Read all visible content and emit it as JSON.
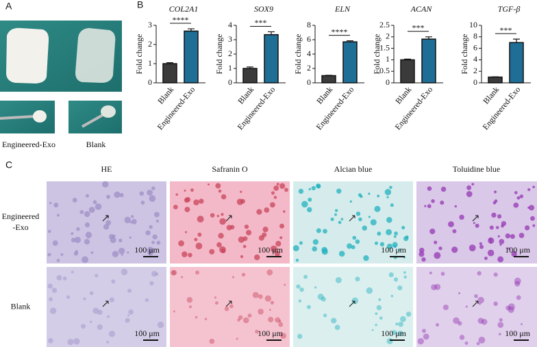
{
  "panels": [
    "A",
    "B",
    "C"
  ],
  "photo_labels": [
    "Engineered-Exo",
    "Blank"
  ],
  "chart_data": [
    {
      "type": "bar",
      "title": "COL2A1",
      "y_label": "Fold change",
      "categories": [
        "Blank",
        "Engineered-Exo"
      ],
      "values": [
        1.0,
        2.7
      ],
      "errors": [
        0.05,
        0.12
      ],
      "colors": [
        "#3b3b3b",
        "#1f6e96"
      ],
      "ylim": [
        0,
        3
      ],
      "yticks": [
        0,
        1,
        2,
        3
      ],
      "significance": "****"
    },
    {
      "type": "bar",
      "title": "SOX9",
      "y_label": "Fold change",
      "categories": [
        "Blank",
        "Engineered-Exo"
      ],
      "values": [
        1.0,
        3.35
      ],
      "errors": [
        0.1,
        0.2
      ],
      "colors": [
        "#3b3b3b",
        "#1f6e96"
      ],
      "ylim": [
        0,
        4
      ],
      "yticks": [
        0,
        1,
        2,
        3,
        4
      ],
      "significance": "***"
    },
    {
      "type": "bar",
      "title": "ELN",
      "y_label": "Fold change",
      "categories": [
        "Blank",
        "Engineered-Exo"
      ],
      "values": [
        1.0,
        5.7
      ],
      "errors": [
        0.05,
        0.15
      ],
      "colors": [
        "#3b3b3b",
        "#1f6e96"
      ],
      "ylim": [
        0,
        8
      ],
      "yticks": [
        0,
        2,
        4,
        6,
        8
      ],
      "significance": "****"
    },
    {
      "type": "bar",
      "title": "ACAN",
      "y_label": "Fold change",
      "categories": [
        "Blank",
        "Engineered-Exo"
      ],
      "values": [
        1.0,
        1.9
      ],
      "errors": [
        0.03,
        0.1
      ],
      "colors": [
        "#3b3b3b",
        "#1f6e96"
      ],
      "ylim": [
        0,
        2.5
      ],
      "yticks": [
        0,
        0.5,
        1,
        1.5,
        2,
        2.5
      ],
      "significance": "***"
    },
    {
      "type": "bar",
      "title": "TGF-β",
      "y_label": "Fold change",
      "categories": [
        "Blank",
        "Engineered-Exo"
      ],
      "values": [
        1.0,
        7.0
      ],
      "errors": [
        0.05,
        0.6
      ],
      "colors": [
        "#3b3b3b",
        "#1f6e96"
      ],
      "ylim": [
        0,
        10
      ],
      "yticks": [
        0,
        2,
        4,
        6,
        8,
        10
      ],
      "significance": "***"
    }
  ],
  "histology": {
    "columns": [
      "HE",
      "Safranin O",
      "Alcian blue",
      "Toluidine blue"
    ],
    "rows": [
      [
        "Engineered",
        "-Exo"
      ],
      [
        "Blank"
      ]
    ],
    "scale_bar": "100 μm"
  }
}
